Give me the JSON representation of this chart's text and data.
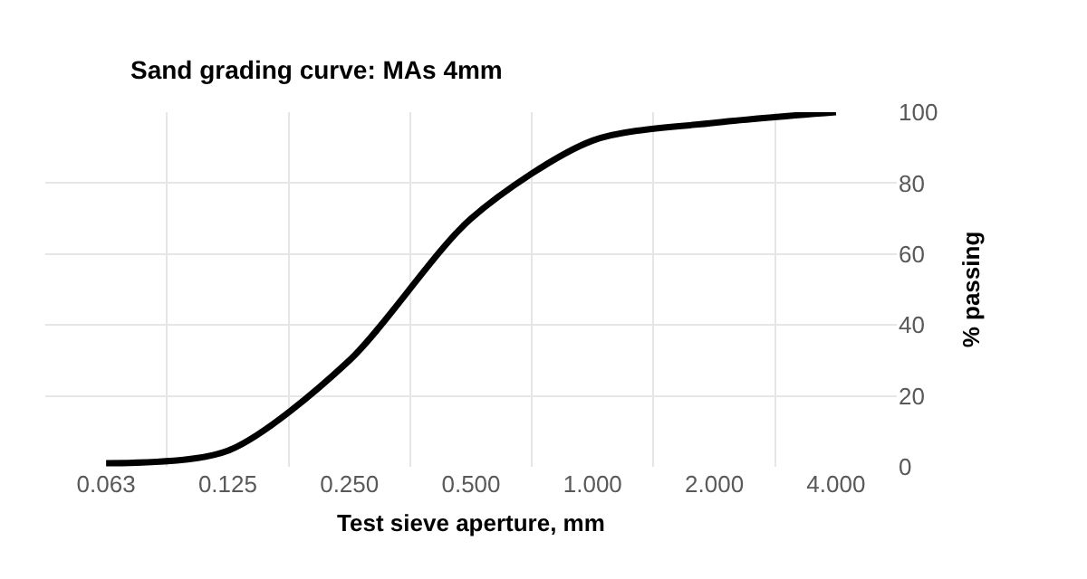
{
  "chart_data": {
    "type": "line",
    "title": "Sand grading curve: MAs 4mm",
    "xlabel": "Test sieve aperture, mm",
    "ylabel": "% passing",
    "categories": [
      "0.063",
      "0.125",
      "0.250",
      "0.500",
      "1.000",
      "2.000",
      "4.000"
    ],
    "series": [
      {
        "color": "#000000",
        "values": [
          1,
          4.5,
          30,
          70,
          92,
          97,
          100
        ]
      }
    ],
    "ylim": [
      0,
      100
    ],
    "yticks": [
      0,
      20,
      40,
      60,
      80,
      100
    ],
    "grid": true,
    "marker": "none",
    "line_style": "solid"
  }
}
